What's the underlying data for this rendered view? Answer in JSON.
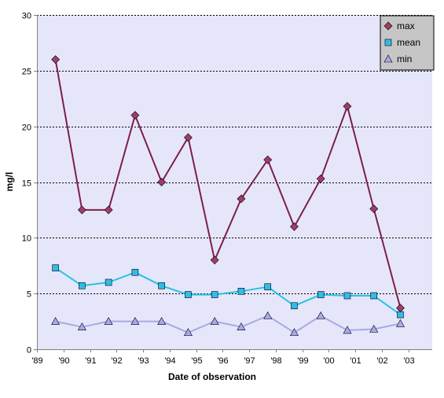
{
  "chart_data": {
    "type": "line",
    "xlabel": "Date of observation",
    "ylabel": "mg/l",
    "ylim": [
      0,
      30
    ],
    "yticks": [
      0,
      5,
      10,
      15,
      20,
      25,
      30
    ],
    "xlim": [
      1989,
      2003.9
    ],
    "xticks": [
      {
        "value": 1989,
        "label": "'89"
      },
      {
        "value": 1990,
        "label": "'90"
      },
      {
        "value": 1991,
        "label": "'91"
      },
      {
        "value": 1992,
        "label": "'92"
      },
      {
        "value": 1993,
        "label": "'93"
      },
      {
        "value": 1994,
        "label": "'94"
      },
      {
        "value": 1995,
        "label": "'95"
      },
      {
        "value": 1996,
        "label": "'96"
      },
      {
        "value": 1997,
        "label": "'97"
      },
      {
        "value": 1998,
        "label": "'98"
      },
      {
        "value": 1999,
        "label": "'99"
      },
      {
        "value": 2000,
        "label": "'00"
      },
      {
        "value": 2001,
        "label": "'01"
      },
      {
        "value": 2002,
        "label": "'02"
      },
      {
        "value": 2003,
        "label": "'03"
      }
    ],
    "x": [
      1989.7,
      1990.7,
      1991.7,
      1992.7,
      1993.7,
      1994.7,
      1995.7,
      1996.7,
      1997.7,
      1998.7,
      1999.7,
      2000.7,
      2001.7,
      2002.7
    ],
    "grid": "horizontal dotted",
    "legend_position": "top-right",
    "plot_background": "#e6e6fa",
    "series": [
      {
        "name": "max",
        "values": [
          26,
          12.5,
          12.5,
          21,
          15,
          19,
          8,
          13.5,
          17,
          11,
          15.3,
          21.8,
          12.6,
          3.7
        ],
        "line_color": "#7b1f4a",
        "marker": "diamond",
        "marker_color": "#a03c6a"
      },
      {
        "name": "mean",
        "values": [
          7.3,
          5.7,
          6,
          6.9,
          5.7,
          4.9,
          4.9,
          5.2,
          5.6,
          3.9,
          4.9,
          4.8,
          4.8,
          3.1
        ],
        "line_color": "#22c4e4",
        "marker": "square",
        "marker_color": "#33bbe8"
      },
      {
        "name": "min",
        "values": [
          2.5,
          2,
          2.5,
          2.5,
          2.5,
          1.5,
          2.5,
          2,
          3,
          1.5,
          3,
          1.7,
          1.8,
          2.3
        ],
        "line_color": "#a8a8e6",
        "marker": "triangle",
        "marker_color": "#a9a9ee"
      }
    ]
  }
}
